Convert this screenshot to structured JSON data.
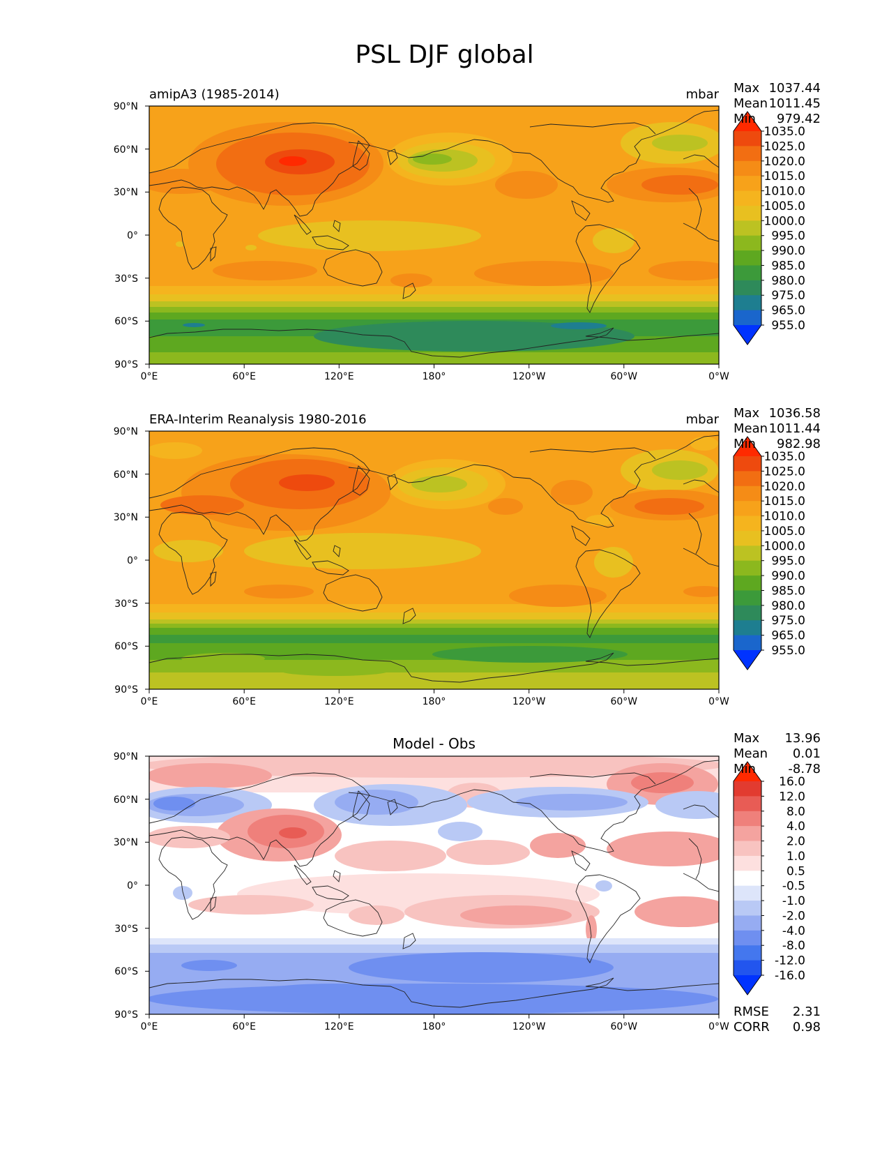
{
  "title": "PSL DJF global",
  "y_ticks": [
    "90°N",
    "60°N",
    "30°N",
    "0°",
    "30°S",
    "60°S",
    "90°S"
  ],
  "x_ticks": [
    "0°E",
    "60°E",
    "120°E",
    "180°",
    "120°W",
    "60°W",
    "0°W"
  ],
  "colors": {
    "psl": [
      "#0033ff",
      "#1a66cc",
      "#1e7e90",
      "#2e8a5a",
      "#3c9a3a",
      "#5ea820",
      "#8cb81e",
      "#bcc222",
      "#e8c020",
      "#f5b41e",
      "#f7a21a",
      "#f58c16",
      "#f26e12",
      "#ee4a0e",
      "#ff2a00"
    ],
    "diff": [
      "#0033ff",
      "#2255ee",
      "#4477ee",
      "#6f8ff0",
      "#96acf2",
      "#b9c9f5",
      "#dde5fa",
      "#ffffff",
      "#fde0df",
      "#f8c3c0",
      "#f4a39f",
      "#ef807b",
      "#e85c55",
      "#e23b30",
      "#ff2a00"
    ]
  },
  "panels": [
    {
      "left_label": "amipA3 (1985-2014)",
      "right_label": "mbar",
      "center_title": "",
      "stats": [
        {
          "label": "Max",
          "value": "1037.44"
        },
        {
          "label": "Mean",
          "value": "1011.45"
        },
        {
          "label": "Min",
          "value": "979.42"
        }
      ],
      "colorbar_labels": [
        "1035.0",
        "1025.0",
        "1020.0",
        "1015.0",
        "1010.0",
        "1005.0",
        "1000.0",
        "995.0",
        "990.0",
        "985.0",
        "980.0",
        "975.0",
        "965.0",
        "955.0"
      ],
      "footer_stats": []
    },
    {
      "left_label": "ERA-Interim Reanalysis 1980-2016",
      "right_label": "mbar",
      "center_title": "",
      "stats": [
        {
          "label": "Max",
          "value": "1036.58"
        },
        {
          "label": "Mean",
          "value": "1011.44"
        },
        {
          "label": "Min",
          "value": "982.98"
        }
      ],
      "colorbar_labels": [
        "1035.0",
        "1025.0",
        "1020.0",
        "1015.0",
        "1010.0",
        "1005.0",
        "1000.0",
        "995.0",
        "990.0",
        "985.0",
        "980.0",
        "975.0",
        "965.0",
        "955.0"
      ],
      "footer_stats": []
    },
    {
      "left_label": "",
      "right_label": "",
      "center_title": "Model - Obs",
      "stats": [
        {
          "label": "Max",
          "value": "13.96"
        },
        {
          "label": "Mean",
          "value": "0.01"
        },
        {
          "label": "Min",
          "value": "-8.78"
        }
      ],
      "colorbar_labels": [
        "16.0",
        "12.0",
        "8.0",
        "4.0",
        "2.0",
        "1.0",
        "0.5",
        "-0.5",
        "-1.0",
        "-2.0",
        "-4.0",
        "-8.0",
        "-12.0",
        "-16.0"
      ],
      "footer_stats": [
        {
          "label": "RMSE",
          "value": "2.31"
        },
        {
          "label": "CORR",
          "value": "0.98"
        }
      ]
    }
  ]
}
